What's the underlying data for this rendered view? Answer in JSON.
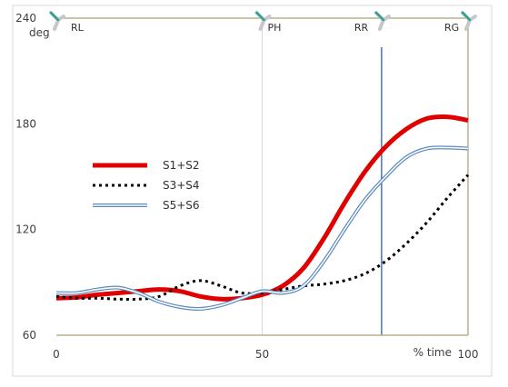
{
  "chart_data": {
    "type": "line",
    "ylabel_unit": "deg",
    "xlabel": "% time",
    "xlim": [
      0,
      100
    ],
    "ylim": [
      60,
      240
    ],
    "y_ticks": [
      60,
      120,
      180,
      240
    ],
    "x_ticks": [
      0,
      50,
      100
    ],
    "grid": {
      "vertical_at": [
        50
      ],
      "horizontal": false
    },
    "phase_boundaries": [
      50,
      79,
      100
    ],
    "phase_labels": [
      {
        "text": "RL",
        "x": 0
      },
      {
        "text": "PH",
        "x": 50
      },
      {
        "text": "RR",
        "x": 79
      },
      {
        "text": "RG",
        "x": 100
      }
    ],
    "marker_line_x": 79,
    "legend_position": "left-middle",
    "series": [
      {
        "name": "S1+S2",
        "style": "solid-thick",
        "color": "#e00000",
        "points": [
          [
            0,
            81
          ],
          [
            5,
            81.5
          ],
          [
            10,
            83
          ],
          [
            15,
            84
          ],
          [
            20,
            85
          ],
          [
            25,
            86
          ],
          [
            30,
            85
          ],
          [
            35,
            82
          ],
          [
            40,
            80.5
          ],
          [
            45,
            81
          ],
          [
            50,
            83
          ],
          [
            55,
            88
          ],
          [
            60,
            98
          ],
          [
            65,
            115
          ],
          [
            70,
            135
          ],
          [
            75,
            153
          ],
          [
            80,
            167
          ],
          [
            85,
            177
          ],
          [
            90,
            183
          ],
          [
            95,
            184
          ],
          [
            100,
            182
          ]
        ]
      },
      {
        "name": "S3+S4",
        "style": "dotted",
        "color": "#000000",
        "points": [
          [
            0,
            82
          ],
          [
            5,
            81
          ],
          [
            10,
            81
          ],
          [
            15,
            80.5
          ],
          [
            20,
            80.5
          ],
          [
            25,
            82
          ],
          [
            30,
            88
          ],
          [
            35,
            91
          ],
          [
            40,
            88
          ],
          [
            45,
            84
          ],
          [
            50,
            84
          ],
          [
            55,
            86
          ],
          [
            60,
            88
          ],
          [
            65,
            89
          ],
          [
            70,
            91
          ],
          [
            75,
            95
          ],
          [
            80,
            102
          ],
          [
            85,
            112
          ],
          [
            90,
            124
          ],
          [
            95,
            138
          ],
          [
            100,
            151
          ]
        ]
      },
      {
        "name": "S5+S6",
        "style": "double-line",
        "color": "#5a8ac0",
        "points": [
          [
            0,
            84
          ],
          [
            5,
            84
          ],
          [
            10,
            86
          ],
          [
            15,
            87
          ],
          [
            20,
            84
          ],
          [
            25,
            79
          ],
          [
            30,
            76
          ],
          [
            35,
            75
          ],
          [
            40,
            77
          ],
          [
            45,
            81
          ],
          [
            50,
            85
          ],
          [
            55,
            84
          ],
          [
            60,
            88
          ],
          [
            65,
            102
          ],
          [
            70,
            120
          ],
          [
            75,
            137
          ],
          [
            80,
            150
          ],
          [
            85,
            161
          ],
          [
            90,
            166
          ],
          [
            95,
            166.5
          ],
          [
            100,
            166
          ]
        ]
      }
    ]
  }
}
